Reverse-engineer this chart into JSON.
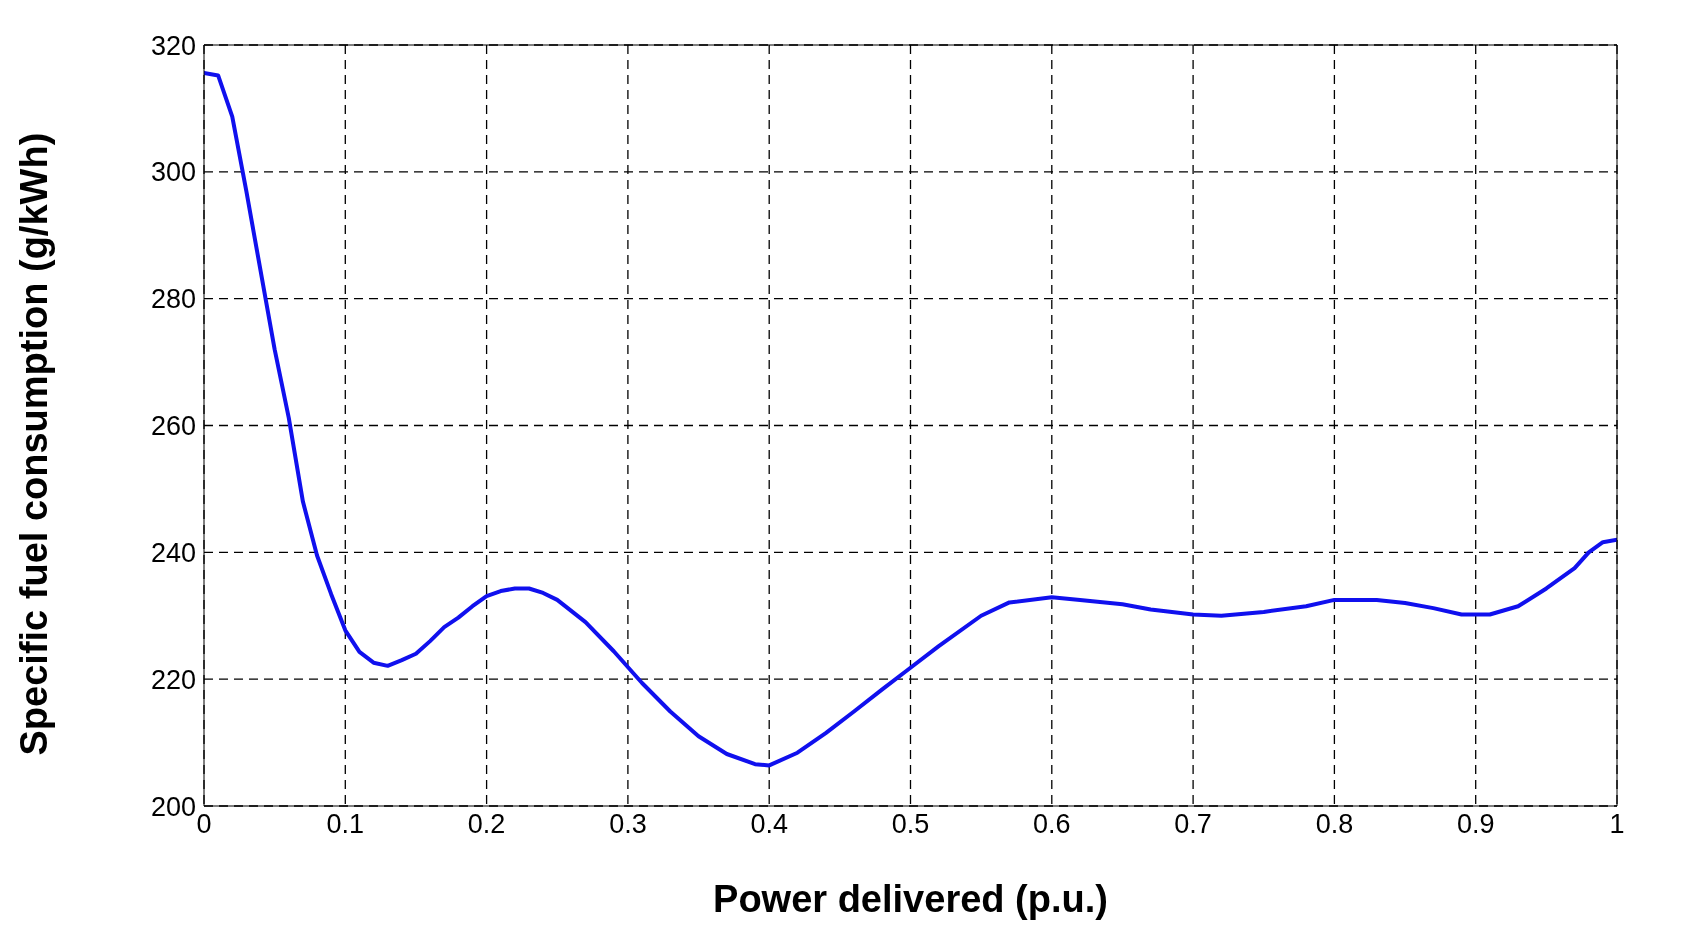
{
  "chart_data": {
    "type": "line",
    "xlabel": "Power delivered (p.u.)",
    "ylabel": "Specific fuel consumption (g/kWh)",
    "xlim": [
      0,
      1
    ],
    "xticks": [
      0,
      0.1,
      0.2,
      0.3,
      0.4,
      0.5,
      0.6,
      0.7,
      0.8,
      0.9,
      1
    ],
    "ylim": [
      200,
      320
    ],
    "yticks": [
      200,
      220,
      240,
      260,
      280,
      300,
      320
    ],
    "grid": true,
    "marker": "none",
    "line_style": "solid",
    "x": [
      0,
      0.01,
      0.02,
      0.03,
      0.05,
      0.06,
      0.07,
      0.08,
      0.09,
      0.1,
      0.11,
      0.12,
      0.13,
      0.14,
      0.15,
      0.16,
      0.17,
      0.18,
      0.19,
      0.2,
      0.21,
      0.22,
      0.23,
      0.24,
      0.25,
      0.27,
      0.29,
      0.31,
      0.33,
      0.35,
      0.37,
      0.39,
      0.4,
      0.42,
      0.44,
      0.46,
      0.48,
      0.5,
      0.52,
      0.55,
      0.57,
      0.6,
      0.62,
      0.65,
      0.67,
      0.7,
      0.72,
      0.75,
      0.78,
      0.8,
      0.83,
      0.85,
      0.87,
      0.89,
      0.91,
      0.93,
      0.95,
      0.97,
      0.98,
      0.99,
      1
    ],
    "series": [
      {
        "color": "#1010ee",
        "values": [
          315.6,
          315.2,
          308.7,
          296.9,
          272,
          261.2,
          248,
          239.5,
          233.4,
          227.7,
          224.3,
          222.6,
          222.1,
          223,
          224,
          226,
          228.2,
          229.7,
          231.5,
          233.1,
          233.9,
          234.3,
          234.3,
          233.6,
          232.5,
          229,
          224.4,
          219.4,
          214.9,
          211,
          208.2,
          206.6,
          206.4,
          208.4,
          211.5,
          214.9,
          218.4,
          221.8,
          225.2,
          230,
          232.1,
          232.9,
          232.5,
          231.8,
          231,
          230.2,
          230,
          230.6,
          231.5,
          232.5,
          232.5,
          232,
          231.2,
          230.2,
          230.2,
          231.5,
          234.3,
          237.5,
          240,
          241.6,
          242
        ]
      }
    ]
  }
}
